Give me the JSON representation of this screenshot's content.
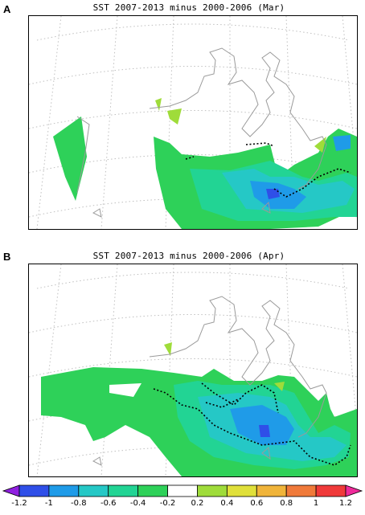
{
  "panels": [
    {
      "letter": "A",
      "title": "SST 2007-2013 minus 2000-2006 (Mar)"
    },
    {
      "letter": "B",
      "title": "SST 2007-2013 minus 2000-2006 (Apr)"
    }
  ],
  "legend": {
    "type": "colorbar",
    "ticks": [
      "-1.2",
      "-1",
      "-0.8",
      "-0.6",
      "-0.4",
      "-0.2",
      "0.2",
      "0.4",
      "0.6",
      "0.8",
      "1",
      "1.2"
    ],
    "colors": [
      "#8f1fe0",
      "#2f4fe8",
      "#1f9be8",
      "#25c8c6",
      "#22d494",
      "#2ed159",
      "#ffffff",
      "#9fdc3a",
      "#e0e03a",
      "#f0b43a",
      "#f07a3a",
      "#f03a3a",
      "#ee2a9a"
    ]
  },
  "contour_colors": {
    "land_outline": "#9a9a9a",
    "graticule": "#bfbfbf",
    "contour": "#000000"
  }
}
